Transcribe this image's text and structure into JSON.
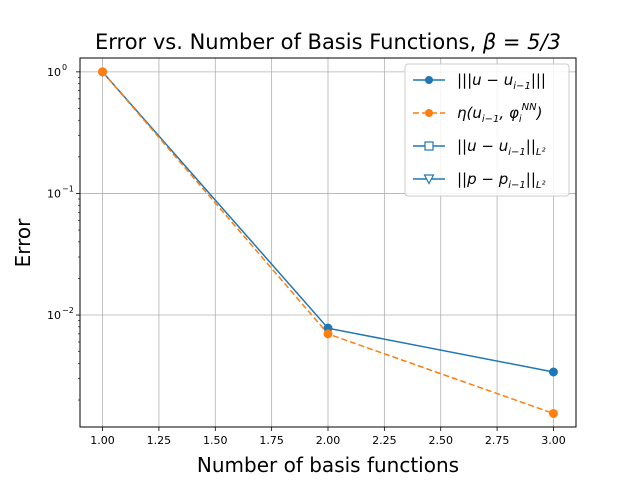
{
  "chart_data": {
    "type": "line",
    "title": "Error vs. Number of Basis Functions, β = 5/3",
    "title_plain": "Error vs. Number of Basis Functions, ",
    "title_math": "β = 5/3",
    "xlabel": "Number of basis functions",
    "ylabel": "Error",
    "x_scale": "linear",
    "y_scale": "log",
    "xlim": [
      0.9,
      3.1
    ],
    "ylim": [
      0.0012,
      1.3
    ],
    "grid": true,
    "legend_position": "top-right",
    "x_ticks": [
      "1.00",
      "1.25",
      "1.50",
      "1.75",
      "2.00",
      "2.25",
      "2.50",
      "2.75",
      "3.00"
    ],
    "y_ticks": [
      {
        "value": 1,
        "base": "10",
        "exp": "0"
      },
      {
        "value": 0.1,
        "base": "10",
        "exp": "−1"
      },
      {
        "value": 0.01,
        "base": "10",
        "exp": "−2"
      }
    ],
    "series": [
      {
        "name": "|||u − u_{i−1}|||",
        "x": [
          1,
          2,
          3
        ],
        "y": [
          1.0,
          0.0078,
          0.0034
        ],
        "color": "#1f77b4",
        "linestyle": "solid",
        "marker": "circle-filled"
      },
      {
        "name": "η(u_{i−1}, φ_i^{NN})",
        "x": [
          1,
          2,
          3
        ],
        "y": [
          1.0,
          0.007,
          0.00155
        ],
        "color": "#ff7f0e",
        "linestyle": "dashed",
        "marker": "circle-filled"
      },
      {
        "name": "||u − u_{i−1}||_{L²}",
        "x": [],
        "y": [],
        "color": "#1f77b4",
        "linestyle": "solid",
        "marker": "square-open"
      },
      {
        "name": "||p − p_{i−1}||_{L²}",
        "x": [],
        "y": [],
        "color": "#1f77b4",
        "linestyle": "solid",
        "marker": "triangle-down-open"
      }
    ]
  },
  "legend": [
    {
      "main": "|||u − u",
      "sub": "i−1",
      "tail": "|||"
    },
    {
      "main": "η(u",
      "sub": "i−1",
      "tail": ", φ",
      "sub2": "i",
      "sup2": "NN",
      "tail2": ")"
    },
    {
      "main": "||u − u",
      "sub": "i−1",
      "tail": "||",
      "sub3": "L²"
    },
    {
      "main": "||p − p",
      "sub": "i−1",
      "tail": "||",
      "sub3": "L²"
    }
  ]
}
